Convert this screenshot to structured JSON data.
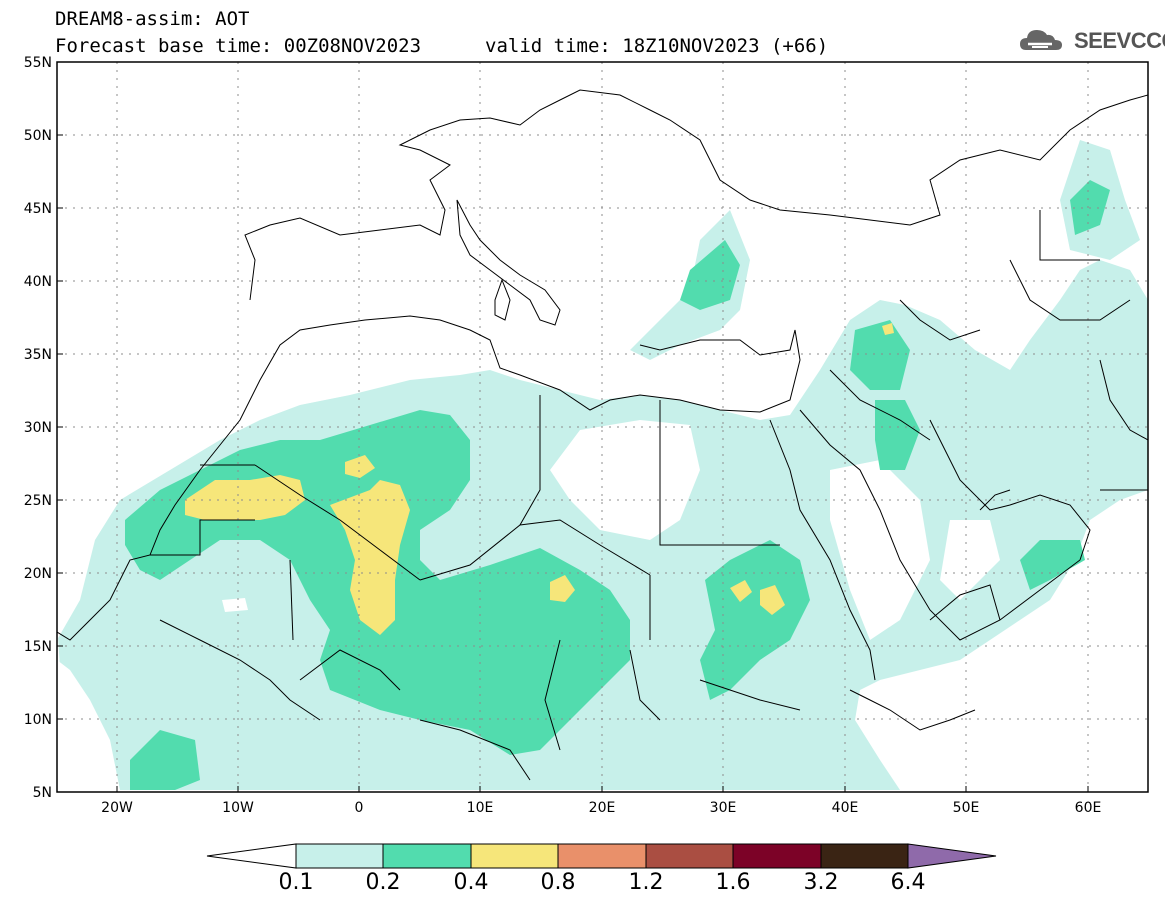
{
  "header": {
    "model_line": "DREAM8-assim: AOT",
    "base_time_line": "Forecast base time: 00Z08NOV2023",
    "valid_time_line": "valid time: 18Z10NOV2023 (+66)",
    "logo_text": "SEEVCCC"
  },
  "map": {
    "lat_labels": [
      "55N",
      "50N",
      "45N",
      "40N",
      "35N",
      "30N",
      "25N",
      "20N",
      "15N",
      "10N",
      "5N"
    ],
    "lon_labels": [
      "20W",
      "10W",
      "0",
      "10E",
      "20E",
      "30E",
      "40E",
      "50E",
      "60E"
    ]
  },
  "colorbar": {
    "labels": [
      "0.1",
      "0.2",
      "0.4",
      "0.8",
      "1.2",
      "1.6",
      "3.2",
      "6.4"
    ],
    "colors": [
      "#c7f0ea",
      "#52dcae",
      "#f6e67a",
      "#e9906a",
      "#aa4e42",
      "#7c0227",
      "#3a2414",
      "#8f6aaa"
    ]
  }
}
